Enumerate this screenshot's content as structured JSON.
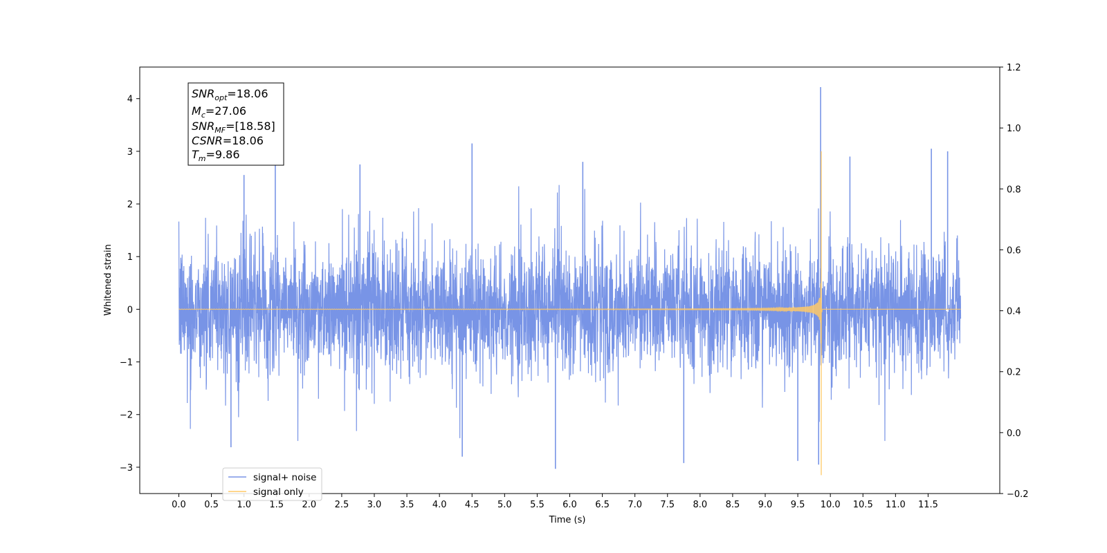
{
  "chart_data": {
    "type": "line",
    "title": "",
    "xlabel": "Time (s)",
    "ylabel": "Whitened strain",
    "xlim": [
      -0.6,
      12.6
    ],
    "ylim": [
      -3.5,
      4.6
    ],
    "y2lim": [
      -0.2,
      1.2
    ],
    "x_ticks": [
      "0.0",
      "0.5",
      "1.0",
      "1.5",
      "2.0",
      "2.5",
      "3.0",
      "3.5",
      "4.0",
      "4.5",
      "5.0",
      "5.5",
      "6.0",
      "6.5",
      "7.0",
      "7.5",
      "8.0",
      "8.5",
      "9.0",
      "9.5",
      "10.0",
      "10.5",
      "11.0",
      "11.5"
    ],
    "y_ticks": [
      "4",
      "3",
      "2",
      "1",
      "0",
      "−1",
      "−2",
      "−3"
    ],
    "y2_ticks": [
      "1.2",
      "1.0",
      "0.8",
      "0.6",
      "0.4",
      "0.2",
      "0.0",
      "−0.2"
    ],
    "grid": false,
    "legend_position": "lower-left",
    "series": [
      {
        "name": "signal+ noise",
        "color": "#7894e6",
        "axis": "left",
        "x_range": [
          0.0,
          12.0
        ],
        "envelope_typical": 1.5,
        "notable_peaks": [
          {
            "x": 1.0,
            "y": 2.55
          },
          {
            "x": 1.48,
            "y": 2.75
          },
          {
            "x": 2.78,
            "y": 2.75
          },
          {
            "x": 4.5,
            "y": 3.15
          },
          {
            "x": 6.2,
            "y": 2.8
          },
          {
            "x": 9.85,
            "y": 4.22
          },
          {
            "x": 10.3,
            "y": 2.9
          },
          {
            "x": 11.55,
            "y": 3.05
          },
          {
            "x": 11.8,
            "y": 3.0
          },
          {
            "x": 5.78,
            "y": -3.03
          },
          {
            "x": 0.8,
            "y": -2.62
          },
          {
            "x": 4.35,
            "y": -2.8
          },
          {
            "x": 7.75,
            "y": -2.92
          },
          {
            "x": 9.82,
            "y": -2.95
          },
          {
            "x": 9.5,
            "y": -2.88
          }
        ]
      },
      {
        "name": "signal only",
        "color": "#ffc966",
        "axis": "left",
        "type": "chirp",
        "x_range": [
          0.0,
          12.0
        ],
        "merger_time": 9.86,
        "peak_positive": 3.0,
        "peak_negative": -3.15
      }
    ],
    "annotation": {
      "lines": [
        {
          "base": "SNR",
          "sub": "opt",
          "value": "=18.06"
        },
        {
          "base": "M",
          "sub": "c",
          "value": "=27.06"
        },
        {
          "base": "SNR",
          "sub": "MF",
          "value": "=[18.58]"
        },
        {
          "base": "CSNR",
          "sub": "",
          "value": "=18.06"
        },
        {
          "base": "T",
          "sub": "m",
          "value": "=9.86"
        }
      ]
    }
  }
}
